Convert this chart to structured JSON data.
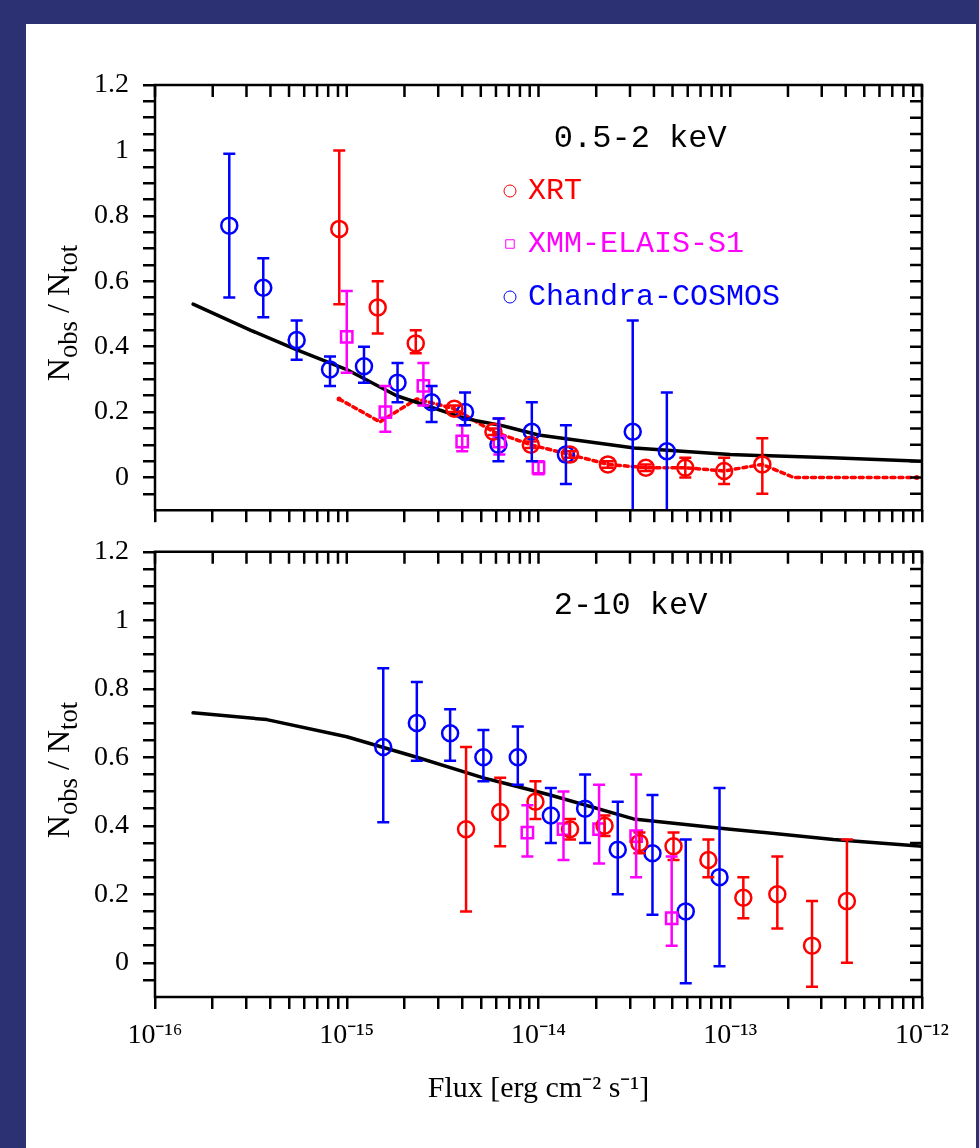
{
  "chart_data": [
    {
      "type": "scatter",
      "ylabel": "N$_{obs}$ / N$_{tot}$",
      "annotations": [
        "0.5-2 keV"
      ],
      "legend": "top right",
      "log": "x",
      "tick_labels": "y",
      "xlim": [
        1e-16,
        1e-12
      ],
      "ylim": [
        -0.1,
        1.2
      ],
      "xticks": [
        {
          "value": 1e-16,
          "label": null
        },
        {
          "value": 2e-16,
          "label": null
        },
        {
          "value": 3e-16,
          "label": null
        },
        {
          "value": 4e-16,
          "label": null
        },
        {
          "value": 5e-16,
          "label": null
        },
        {
          "value": 6e-16,
          "label": null
        },
        {
          "value": 7e-16,
          "label": null
        },
        {
          "value": 8e-16,
          "label": null
        },
        {
          "value": 9e-16,
          "label": null
        },
        {
          "value": 1e-15,
          "label": null
        },
        {
          "value": 2e-15,
          "label": null
        },
        {
          "value": 3e-15,
          "label": null
        },
        {
          "value": 4e-15,
          "label": null
        },
        {
          "value": 5e-15,
          "label": null
        },
        {
          "value": 6e-15,
          "label": null
        },
        {
          "value": 7e-15,
          "label": null
        },
        {
          "value": 8e-15,
          "label": null
        },
        {
          "value": 9e-15,
          "label": null
        },
        {
          "value": 1e-14,
          "label": null
        },
        {
          "value": 2e-14,
          "label": null
        },
        {
          "value": 3e-14,
          "label": null
        },
        {
          "value": 4e-14,
          "label": null
        },
        {
          "value": 5e-14,
          "label": null
        },
        {
          "value": 6e-14,
          "label": null
        },
        {
          "value": 7e-14,
          "label": null
        },
        {
          "value": 8e-14,
          "label": null
        },
        {
          "value": 9e-14,
          "label": null
        },
        {
          "value": 1e-13,
          "label": null
        },
        {
          "value": 2e-13,
          "label": null
        },
        {
          "value": 3e-13,
          "label": null
        },
        {
          "value": 4e-13,
          "label": null
        },
        {
          "value": 5e-13,
          "label": null
        },
        {
          "value": 6e-13,
          "label": null
        },
        {
          "value": 7e-13,
          "label": null
        },
        {
          "value": 8e-13,
          "label": null
        },
        {
          "value": 9e-13,
          "label": null
        },
        {
          "value": 1e-12,
          "label": null
        }
      ],
      "yticks": [
        {
          "value": -0.05,
          "label": null
        },
        0,
        {
          "value": 0.05,
          "label": null
        },
        {
          "value": 0.1,
          "label": null
        },
        {
          "value": 0.15,
          "label": null
        },
        0.2,
        {
          "value": 0.25,
          "label": null
        },
        {
          "value": 0.3,
          "label": null
        },
        {
          "value": 0.35,
          "label": null
        },
        0.4,
        {
          "value": 0.45,
          "label": null
        },
        {
          "value": 0.5,
          "label": null
        },
        {
          "value": 0.55,
          "label": null
        },
        0.6,
        {
          "value": 0.65,
          "label": null
        },
        {
          "value": 0.7,
          "label": null
        },
        {
          "value": 0.75,
          "label": null
        },
        0.8,
        {
          "value": 0.85,
          "label": null
        },
        {
          "value": 0.9,
          "label": null
        },
        {
          "value": 0.95,
          "label": null
        },
        1,
        {
          "value": 1.05,
          "label": null
        },
        {
          "value": 1.1,
          "label": null
        },
        {
          "value": 1.15,
          "label": null
        },
        1.2
      ],
      "series": [
        {
          "name": "XRT",
          "color": "#ff0000",
          "type": "scatter",
          "marker": "circle",
          "x": [
            9.14e-16,
            1.45e-15,
            2.29e-15,
            3.64e-15,
            5.82e-15,
            9.12e-15,
            1.46e-14,
            2.3e-14,
            3.63e-14,
            5.83e-14,
            9.29e-14,
            1.47e-13
          ],
          "values": [
            0.76,
            0.52,
            0.41,
            0.21,
            0.14,
            0.1,
            0.07,
            0.04,
            0.03,
            0.03,
            0.02,
            0.04
          ],
          "errors": [
            [
              0.53,
              1.0
            ],
            [
              0.44,
              0.6
            ],
            [
              0.38,
              0.45
            ],
            [
              0.2,
              0.22
            ],
            [
              0.13,
              0.15
            ],
            [
              0.09,
              0.11
            ],
            [
              0.06,
              0.08
            ],
            [
              0.03,
              0.05
            ],
            [
              0.02,
              0.04
            ],
            [
              0.0,
              0.06
            ],
            [
              -0.02,
              0.06
            ],
            [
              -0.05,
              0.12
            ]
          ]
        },
        {
          "name": "XMM-ELAIS-S1",
          "color": "#ff00ff",
          "type": "scatter",
          "marker": "square",
          "x": [
            1e-15,
            1.59e-15,
            2.51e-15,
            4e-15,
            6.25e-15,
            1e-14
          ],
          "values": [
            0.43,
            0.2,
            0.28,
            0.11,
            0.11,
            0.03
          ],
          "errors": [
            [
              0.32,
              0.57
            ],
            [
              0.14,
              0.28
            ],
            [
              0.22,
              0.35
            ],
            [
              0.08,
              0.16
            ],
            [
              0.07,
              0.18
            ],
            [
              0.01,
              0.05
            ]
          ]
        },
        {
          "name": "Chandra-COSMOS",
          "color": "#0000ff",
          "type": "scatter",
          "marker": "circle",
          "x": [
            2.44e-16,
            3.67e-16,
            5.48e-16,
            8.18e-16,
            1.23e-15,
            1.84e-15,
            2.77e-15,
            4.14e-15,
            6.18e-15,
            9.23e-15,
            1.39e-14,
            3.1e-14,
            4.67e-14
          ],
          "values": [
            0.77,
            0.58,
            0.42,
            0.33,
            0.34,
            0.29,
            0.23,
            0.2,
            0.1,
            0.14,
            0.07,
            0.14,
            0.08
          ],
          "errors": [
            [
              0.55,
              0.99
            ],
            [
              0.49,
              0.67
            ],
            [
              0.36,
              0.48
            ],
            [
              0.28,
              0.37
            ],
            [
              0.29,
              0.4
            ],
            [
              0.23,
              0.35
            ],
            [
              0.17,
              0.28
            ],
            [
              0.16,
              0.26
            ],
            [
              0.05,
              0.18
            ],
            [
              0.05,
              0.23
            ],
            [
              -0.02,
              0.16
            ],
            [
              -0.1,
              0.48
            ],
            [
              -0.1,
              0.26
            ]
          ]
        },
        {
          "color": "#000000",
          "type": "line",
          "line_style": "solid",
          "x": [
            1.58e-16,
            3.16e-16,
            5.5e-16,
            1e-15,
            1.82e-15,
            4.17e-15,
            6.31e-15,
            1e-14,
            3.16e-14,
            1e-13,
            3.39e-13,
            1e-12
          ],
          "values": [
            0.53,
            0.45,
            0.39,
            0.33,
            0.25,
            0.18,
            0.16,
            0.13,
            0.09,
            0.07,
            0.06,
            0.05
          ]
        },
        {
          "color": "#ff0000",
          "type": "line",
          "line_style": "dotted",
          "x": [
            9.12e-16,
            1.49e-15,
            2.32e-15,
            3.64e-15,
            5.82e-15,
            9.12e-15,
            1.46e-14,
            2.3e-14,
            3.63e-14,
            5.83e-14,
            9.29e-14,
            1.47e-13,
            2.14e-13,
            9.4e-13
          ],
          "values": [
            0.24,
            0.17,
            0.24,
            0.21,
            0.14,
            0.1,
            0.07,
            0.04,
            0.03,
            0.03,
            0.02,
            0.04,
            0.0,
            0.0
          ]
        }
      ]
    },
    {
      "type": "scatter",
      "xlabel": "Flux [erg cm⁻² s⁻¹]",
      "ylabel": "N$_{obs}$ / N$_{tot}$",
      "annotations": [
        "2-10 keV"
      ],
      "log": "x",
      "xlim": [
        1e-16,
        1e-12
      ],
      "ylim": [
        -0.1,
        1.2
      ],
      "xticks": [
        {
          "value": 1e-16,
          "label": "10⁻¹⁶"
        },
        {
          "value": 2e-16,
          "label": null
        },
        {
          "value": 3e-16,
          "label": null
        },
        {
          "value": 4e-16,
          "label": null
        },
        {
          "value": 5e-16,
          "label": null
        },
        {
          "value": 6e-16,
          "label": null
        },
        {
          "value": 7e-16,
          "label": null
        },
        {
          "value": 8e-16,
          "label": null
        },
        {
          "value": 9e-16,
          "label": null
        },
        {
          "value": 1e-15,
          "label": "10⁻¹⁵"
        },
        {
          "value": 2e-15,
          "label": null
        },
        {
          "value": 3e-15,
          "label": null
        },
        {
          "value": 4e-15,
          "label": null
        },
        {
          "value": 5e-15,
          "label": null
        },
        {
          "value": 6e-15,
          "label": null
        },
        {
          "value": 7e-15,
          "label": null
        },
        {
          "value": 8e-15,
          "label": null
        },
        {
          "value": 9e-15,
          "label": null
        },
        {
          "value": 1e-14,
          "label": "10⁻¹⁴"
        },
        {
          "value": 2e-14,
          "label": null
        },
        {
          "value": 3e-14,
          "label": null
        },
        {
          "value": 4e-14,
          "label": null
        },
        {
          "value": 5e-14,
          "label": null
        },
        {
          "value": 6e-14,
          "label": null
        },
        {
          "value": 7e-14,
          "label": null
        },
        {
          "value": 8e-14,
          "label": null
        },
        {
          "value": 9e-14,
          "label": null
        },
        {
          "value": 1e-13,
          "label": "10⁻¹³"
        },
        {
          "value": 2e-13,
          "label": null
        },
        {
          "value": 3e-13,
          "label": null
        },
        {
          "value": 4e-13,
          "label": null
        },
        {
          "value": 5e-13,
          "label": null
        },
        {
          "value": 6e-13,
          "label": null
        },
        {
          "value": 7e-13,
          "label": null
        },
        {
          "value": 8e-13,
          "label": null
        },
        {
          "value": 9e-13,
          "label": null
        },
        {
          "value": 1e-12,
          "label": "10⁻¹²"
        }
      ],
      "yticks": [
        {
          "value": -0.05,
          "label": null
        },
        0,
        {
          "value": 0.05,
          "label": null
        },
        {
          "value": 0.1,
          "label": null
        },
        {
          "value": 0.15,
          "label": null
        },
        0.2,
        {
          "value": 0.25,
          "label": null
        },
        {
          "value": 0.3,
          "label": null
        },
        {
          "value": 0.35,
          "label": null
        },
        0.4,
        {
          "value": 0.45,
          "label": null
        },
        {
          "value": 0.5,
          "label": null
        },
        {
          "value": 0.55,
          "label": null
        },
        0.6,
        {
          "value": 0.65,
          "label": null
        },
        {
          "value": 0.7,
          "label": null
        },
        {
          "value": 0.75,
          "label": null
        },
        0.8,
        {
          "value": 0.85,
          "label": null
        },
        {
          "value": 0.9,
          "label": null
        },
        {
          "value": 0.95,
          "label": null
        },
        1,
        {
          "value": 1.05,
          "label": null
        },
        {
          "value": 1.1,
          "label": null
        },
        {
          "value": 1.15,
          "label": null
        },
        1.2
      ],
      "series": [
        {
          "color": "#ff0000",
          "type": "scatter",
          "marker": "circle",
          "x": [
            4.19e-15,
            6.31e-15,
            9.64e-15,
            1.46e-14,
            2.21e-14,
            3.36e-14,
            5.06e-14,
            7.69e-14,
            1.17e-13,
            1.76e-13,
            2.67e-13,
            4.06e-13
          ],
          "values": [
            0.39,
            0.44,
            0.47,
            0.39,
            0.4,
            0.35,
            0.34,
            0.3,
            0.19,
            0.2,
            0.05,
            0.18
          ],
          "errors": [
            [
              0.15,
              0.63
            ],
            [
              0.34,
              0.54
            ],
            [
              0.42,
              0.53
            ],
            [
              0.36,
              0.42
            ],
            [
              0.37,
              0.43
            ],
            [
              0.32,
              0.38
            ],
            [
              0.3,
              0.38
            ],
            [
              0.25,
              0.36
            ],
            [
              0.13,
              0.25
            ],
            [
              0.1,
              0.31
            ],
            [
              -0.07,
              0.18
            ],
            [
              0.0,
              0.36
            ]
          ]
        },
        {
          "color": "#ff00ff",
          "type": "scatter",
          "marker": "square",
          "x": [
            8.75e-15,
            1.35e-14,
            2.07e-14,
            3.23e-14,
            4.95e-14
          ],
          "values": [
            0.38,
            0.39,
            0.39,
            0.37,
            0.13
          ],
          "errors": [
            [
              0.31,
              0.46
            ],
            [
              0.3,
              0.5
            ],
            [
              0.29,
              0.52
            ],
            [
              0.25,
              0.55
            ],
            [
              0.05,
              0.31
            ]
          ]
        },
        {
          "color": "#0000ff",
          "type": "scatter",
          "marker": "circle",
          "x": [
            1.55e-15,
            2.32e-15,
            3.46e-15,
            5.16e-15,
            7.8e-15,
            1.16e-14,
            1.75e-14,
            2.59e-14,
            3.93e-14,
            5.86e-14,
            8.79e-14
          ],
          "values": [
            0.63,
            0.7,
            0.67,
            0.6,
            0.6,
            0.43,
            0.45,
            0.33,
            0.32,
            0.15,
            0.25
          ],
          "errors": [
            [
              0.41,
              0.86
            ],
            [
              0.59,
              0.82
            ],
            [
              0.59,
              0.74
            ],
            [
              0.53,
              0.68
            ],
            [
              0.52,
              0.69
            ],
            [
              0.35,
              0.51
            ],
            [
              0.35,
              0.55
            ],
            [
              0.2,
              0.47
            ],
            [
              0.14,
              0.49
            ],
            [
              -0.06,
              0.36
            ],
            [
              -0.01,
              0.51
            ]
          ]
        },
        {
          "color": "#000000",
          "type": "line",
          "line_style": "solid",
          "x": [
            1.58e-16,
            3.83e-16,
            1e-15,
            2.32e-15,
            5.16e-15,
            1.15e-14,
            3.13e-14,
            1e-13,
            3.45e-13,
            1e-12
          ],
          "values": [
            0.73,
            0.71,
            0.66,
            0.6,
            0.54,
            0.49,
            0.42,
            0.39,
            0.36,
            0.34
          ]
        }
      ]
    }
  ]
}
